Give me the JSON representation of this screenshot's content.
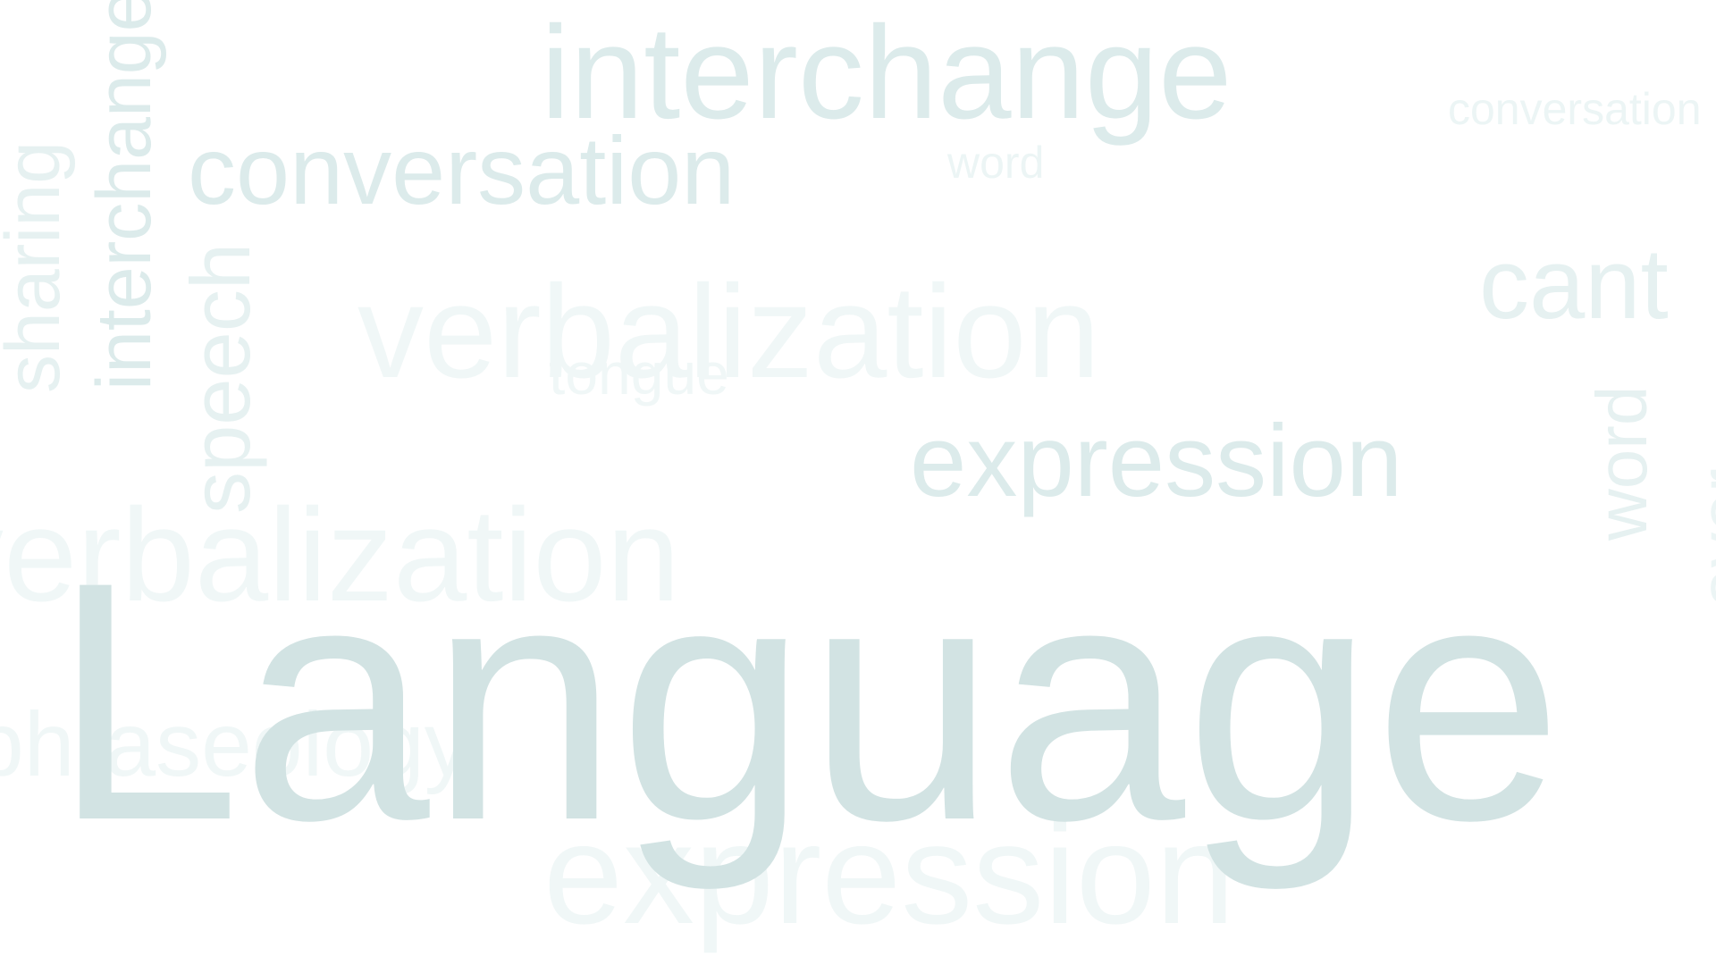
{
  "palette": {
    "background": "#ffffff",
    "strong": "#d2e3e3",
    "mid": "#dcebeb",
    "light": "#e6f1f1",
    "faint": "#ecf5f5",
    "pale": "#f0f7f7"
  },
  "words": {
    "main": "Language",
    "interchange_top": "interchange",
    "interchange_vertical": "interchange",
    "conversation_left": "conversation",
    "conversation_right": "conversation",
    "word_top": "word",
    "word_vertical": "word",
    "verbalization_center": "verbalization",
    "verbalization_left": "verbalization",
    "tongue": "tongue",
    "expression_middle": "expression",
    "expression_bottom": "expression",
    "speech_vertical": "speech",
    "sharing_vertical": "sharing",
    "cant": "cant",
    "phraseology": "phraseology",
    "edge_vertical": "aver"
  }
}
